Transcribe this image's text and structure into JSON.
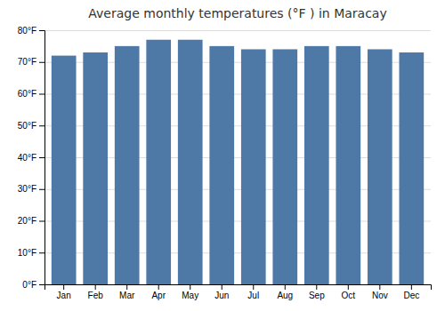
{
  "chart_data": {
    "type": "bar",
    "title": "Average monthly temperatures (°F ) in Maracay",
    "categories": [
      "Jan",
      "Feb",
      "Mar",
      "Apr",
      "May",
      "Jun",
      "Jul",
      "Aug",
      "Sep",
      "Oct",
      "Nov",
      "Dec"
    ],
    "values": [
      72,
      73,
      75,
      77,
      77,
      75,
      74,
      74,
      75,
      75,
      74,
      73
    ],
    "ylim": [
      0,
      80
    ],
    "yticks": [
      {
        "value": 0,
        "label": "0°F"
      },
      {
        "value": 10,
        "label": "10°F"
      },
      {
        "value": 20,
        "label": "20°F"
      },
      {
        "value": 30,
        "label": "30°F"
      },
      {
        "value": 40,
        "label": "40°F"
      },
      {
        "value": 50,
        "label": "50°F"
      },
      {
        "value": 60,
        "label": "60°F"
      },
      {
        "value": 70,
        "label": "70°F"
      },
      {
        "value": 80,
        "label": "80°F"
      }
    ],
    "grid": true
  }
}
